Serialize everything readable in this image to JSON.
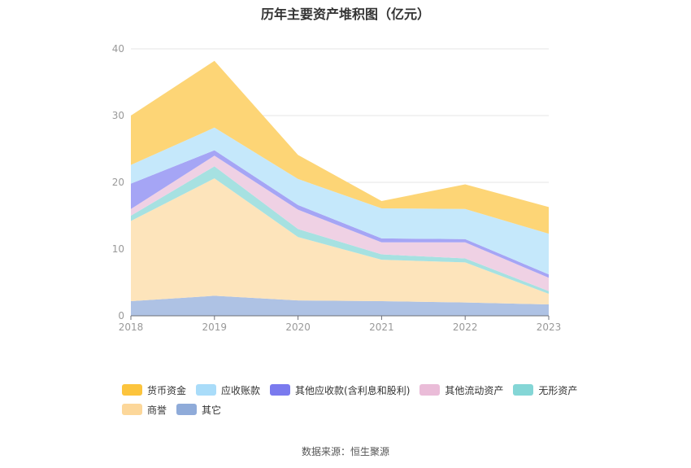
{
  "chart_data": {
    "type": "area",
    "stacked": true,
    "title": "历年主要资产堆积图（亿元）",
    "x": [
      "2018",
      "2019",
      "2020",
      "2021",
      "2022",
      "2023"
    ],
    "ylim": [
      0,
      40
    ],
    "yticks": [
      0,
      10,
      20,
      30,
      40
    ],
    "grid": true,
    "legend_position": "bottom",
    "series": [
      {
        "name": "其它",
        "color": "#aec2e4",
        "values": [
          2.2,
          3.0,
          2.3,
          2.2,
          2.0,
          1.7
        ]
      },
      {
        "name": "商誉",
        "color": "#fde4bb",
        "values": [
          12.0,
          17.6,
          9.5,
          6.2,
          6.0,
          1.6
        ]
      },
      {
        "name": "无形资产",
        "color": "#a6e1e1",
        "values": [
          0.8,
          1.8,
          1.2,
          0.8,
          0.6,
          0.4
        ]
      },
      {
        "name": "其他流动资产",
        "color": "#efd1e4",
        "values": [
          1.0,
          1.6,
          2.9,
          1.8,
          2.4,
          2.0
        ]
      },
      {
        "name": "其他应收款(含利息和股利)",
        "color": "#a5a5f5",
        "values": [
          3.8,
          0.8,
          0.7,
          0.6,
          0.5,
          0.5
        ]
      },
      {
        "name": "应收账款",
        "color": "#c5e8fb",
        "values": [
          2.8,
          3.4,
          3.9,
          4.5,
          4.5,
          6.1
        ]
      },
      {
        "name": "货币资金",
        "color": "#fdd576",
        "values": [
          7.4,
          10.0,
          3.6,
          1.1,
          3.7,
          4.0
        ]
      }
    ],
    "legend_order": [
      {
        "name": "货币资金",
        "color": "#fcc43d"
      },
      {
        "name": "应收账款",
        "color": "#a9dcf9"
      },
      {
        "name": "其他应收款(含利息和股利)",
        "color": "#7a7aee"
      },
      {
        "name": "其他流动资产",
        "color": "#eabcd8"
      },
      {
        "name": "无形资产",
        "color": "#84d6d6"
      },
      {
        "name": "商誉",
        "color": "#fcd79a"
      },
      {
        "name": "其它",
        "color": "#8fabd9"
      }
    ]
  },
  "source": "数据来源：恒生聚源"
}
